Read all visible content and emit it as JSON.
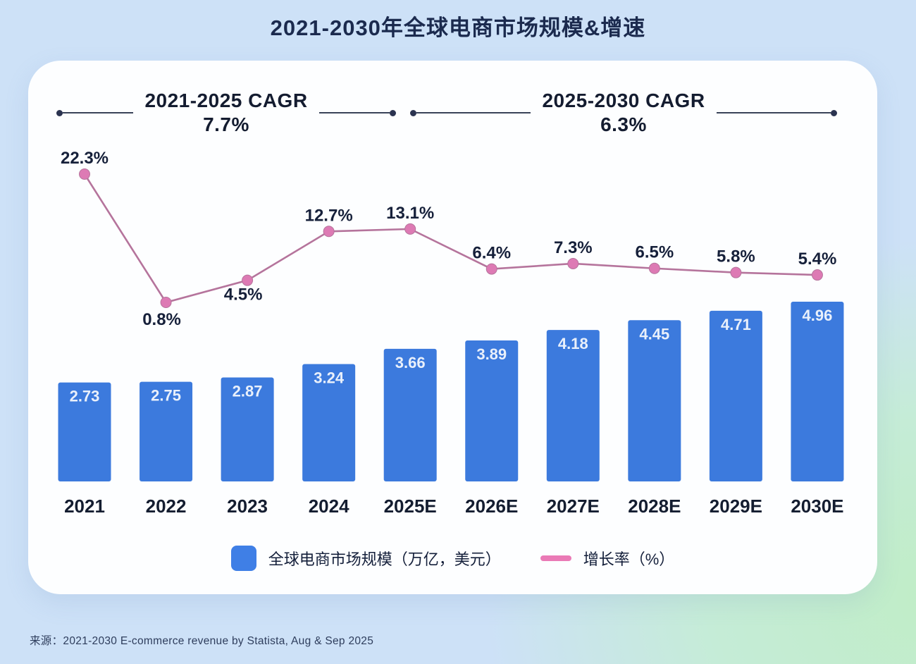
{
  "page_title": "2021-2030年全球电商市场规模&增速",
  "cagr_annotations": [
    {
      "label": "2021-2025 CAGR",
      "value": "7.7%"
    },
    {
      "label": "2025-2030 CAGR",
      "value": "6.3%"
    }
  ],
  "chart_data": {
    "type": "combo-bar-line",
    "title": "2021-2030年全球电商市场规模&增速",
    "categories": [
      "2021",
      "2022",
      "2023",
      "2024",
      "2025E",
      "2026E",
      "2027E",
      "2028E",
      "2029E",
      "2030E"
    ],
    "series": [
      {
        "name": "全球电商市场规模（万亿，美元）",
        "type": "bar",
        "values": [
          2.73,
          2.75,
          2.87,
          3.24,
          3.66,
          3.89,
          4.18,
          4.45,
          4.71,
          4.96
        ],
        "value_labels": [
          "2.73",
          "2.75",
          "2.87",
          "3.24",
          "3.66",
          "3.89",
          "4.18",
          "4.45",
          "4.71",
          "4.96"
        ],
        "unit": "万亿美元",
        "color": "#3c7add"
      },
      {
        "name": "增长率（%）",
        "type": "line",
        "values": [
          22.3,
          0.8,
          4.5,
          12.7,
          13.1,
          6.4,
          7.3,
          6.5,
          5.8,
          5.4
        ],
        "value_labels": [
          "22.3%",
          "0.8%",
          "4.5%",
          "12.7%",
          "13.1%",
          "6.4%",
          "7.3%",
          "6.5%",
          "5.8%",
          "5.4%"
        ],
        "unit": "%",
        "color": "#b5749c",
        "marker_color": "#dd7ab4"
      }
    ],
    "annotations": [
      "2021-2025 CAGR 7.7%",
      "2025-2030 CAGR 6.3%"
    ],
    "legend_position": "bottom",
    "grid": false,
    "value_axis_visible": false
  },
  "source": "来源：2021-2030 E-commerce revenue by Statista, Aug & Sep 2025",
  "colors": {
    "background_blue": "#cde1f7",
    "background_green": "#c0edc6",
    "card": "#fdfeff",
    "title_text": "#1b2a4e",
    "bar": "#3c7add",
    "bar_value_text": "#e9f0fb",
    "line": "#b5749c",
    "marker": "#dd7ab4",
    "axis_label_text": "#141d30",
    "pct_label_text": "#16203a",
    "bracket": "#2b3350",
    "legend_bar_swatch": "#3f7fe6",
    "legend_line_swatch": "#ea7ab6"
  }
}
